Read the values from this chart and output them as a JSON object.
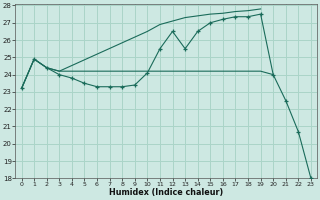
{
  "xlabel": "Humidex (Indice chaleur)",
  "bg_color": "#cde8e2",
  "grid_color": "#aad4c8",
  "line_color": "#1a6b5a",
  "xlim": [
    0,
    23
  ],
  "ylim": [
    18,
    28
  ],
  "xticks": [
    0,
    1,
    2,
    3,
    4,
    5,
    6,
    7,
    8,
    9,
    10,
    11,
    12,
    13,
    14,
    15,
    16,
    17,
    18,
    19,
    20,
    21,
    22,
    23
  ],
  "yticks": [
    18,
    19,
    20,
    21,
    22,
    23,
    24,
    25,
    26,
    27,
    28
  ],
  "series": [
    {
      "x": [
        0,
        1,
        2,
        3,
        4,
        5,
        6,
        7,
        8,
        9,
        10,
        11,
        12,
        13,
        14,
        15,
        16,
        17,
        18,
        19,
        20,
        21,
        22,
        23
      ],
      "y": [
        23.2,
        24.9,
        24.4,
        24.0,
        23.8,
        23.5,
        23.3,
        23.3,
        23.3,
        23.4,
        24.1,
        25.5,
        26.5,
        25.5,
        26.5,
        27.0,
        27.2,
        27.35,
        27.35,
        27.5,
        24.0,
        22.5,
        20.7,
        18.0
      ],
      "marker": true
    },
    {
      "x": [
        0,
        1,
        2,
        3,
        4,
        5,
        6,
        7,
        8,
        9,
        10,
        19,
        20
      ],
      "y": [
        23.2,
        24.9,
        24.4,
        24.2,
        24.2,
        24.2,
        24.2,
        24.2,
        24.2,
        24.2,
        24.2,
        24.2,
        24.0
      ],
      "marker": false
    },
    {
      "x": [
        0,
        1,
        2,
        3,
        10,
        11,
        12,
        13,
        14,
        15,
        16,
        17,
        18,
        19
      ],
      "y": [
        23.2,
        24.9,
        24.4,
        24.2,
        26.5,
        26.9,
        27.1,
        27.3,
        27.4,
        27.5,
        27.55,
        27.65,
        27.7,
        27.8
      ],
      "marker": false
    }
  ]
}
